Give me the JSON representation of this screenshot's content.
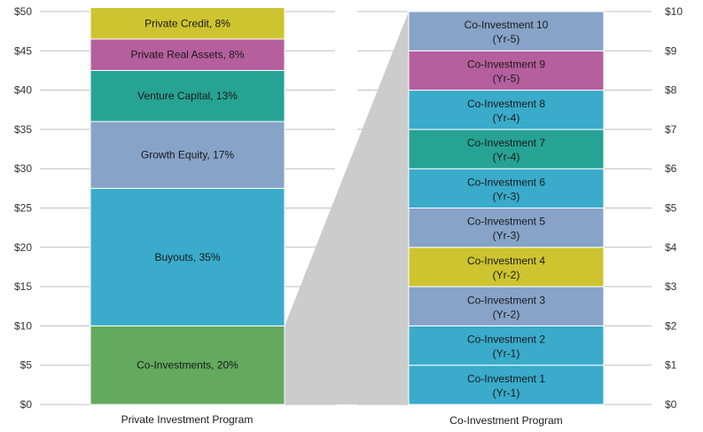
{
  "chart_data": [
    {
      "type": "bar",
      "stacked": true,
      "xlabel": "Private Investment Program",
      "yaxis": {
        "side": "left",
        "ylim": [
          0,
          50
        ],
        "ticks": [
          0,
          5,
          10,
          15,
          20,
          25,
          30,
          35,
          40,
          45,
          50
        ],
        "tick_labels": [
          "$0",
          "$5",
          "$10",
          "$15",
          "$20",
          "$25",
          "$30",
          "$35",
          "$40",
          "$45",
          "$50"
        ]
      },
      "series": [
        {
          "label": "Co-Investments, 20%",
          "value": 10,
          "color": "#63aa5e"
        },
        {
          "label": "Buyouts, 35%",
          "value": 17.5,
          "color": "#3aabcb"
        },
        {
          "label": "Growth Equity, 17%",
          "value": 8.5,
          "color": "#87a3c8"
        },
        {
          "label": "Venture Capital, 13%",
          "value": 6.5,
          "color": "#26a394"
        },
        {
          "label": "Private Real Assets, 8%",
          "value": 4,
          "color": "#b65f9e"
        },
        {
          "label": "Private Credit, 8%",
          "value": 4,
          "color": "#cdc42f"
        }
      ]
    },
    {
      "type": "bar",
      "stacked": true,
      "xlabel": "Co-Investment Program",
      "yaxis": {
        "side": "right",
        "ylim": [
          0,
          10
        ],
        "ticks": [
          0,
          1,
          2,
          3,
          4,
          5,
          6,
          7,
          8,
          9,
          10
        ],
        "tick_labels": [
          "$0",
          "$1",
          "$2",
          "$3",
          "$4",
          "$5",
          "$6",
          "$7",
          "$8",
          "$9",
          "$10"
        ]
      },
      "series": [
        {
          "label": "Co-Investment 1",
          "sublabel": "(Yr-1)",
          "value": 1,
          "color": "#3aabcb"
        },
        {
          "label": "Co-Investment 2",
          "sublabel": "(Yr-1)",
          "value": 1,
          "color": "#3aabcb"
        },
        {
          "label": "Co-Investment 3",
          "sublabel": "(Yr-2)",
          "value": 1,
          "color": "#87a3c8"
        },
        {
          "label": "Co-Investment 4",
          "sublabel": "(Yr-2)",
          "value": 1,
          "color": "#cdc42f"
        },
        {
          "label": "Co-Investment 5",
          "sublabel": "(Yr-3)",
          "value": 1,
          "color": "#87a3c8"
        },
        {
          "label": "Co-Investment 6",
          "sublabel": "(Yr-3)",
          "value": 1,
          "color": "#3aabcb"
        },
        {
          "label": "Co-Investment 7",
          "sublabel": "(Yr-4)",
          "value": 1,
          "color": "#26a394"
        },
        {
          "label": "Co-Investment 8",
          "sublabel": "(Yr-4)",
          "value": 1,
          "color": "#3aabcb"
        },
        {
          "label": "Co-Investment 9",
          "sublabel": "(Yr-5)",
          "value": 1,
          "color": "#b65f9e"
        },
        {
          "label": "Co-Investment 10",
          "sublabel": "(Yr-5)",
          "value": 1,
          "color": "#87a3c8"
        }
      ]
    }
  ],
  "connector_color": "#cccccc",
  "grid_color": "#bfbfbf"
}
